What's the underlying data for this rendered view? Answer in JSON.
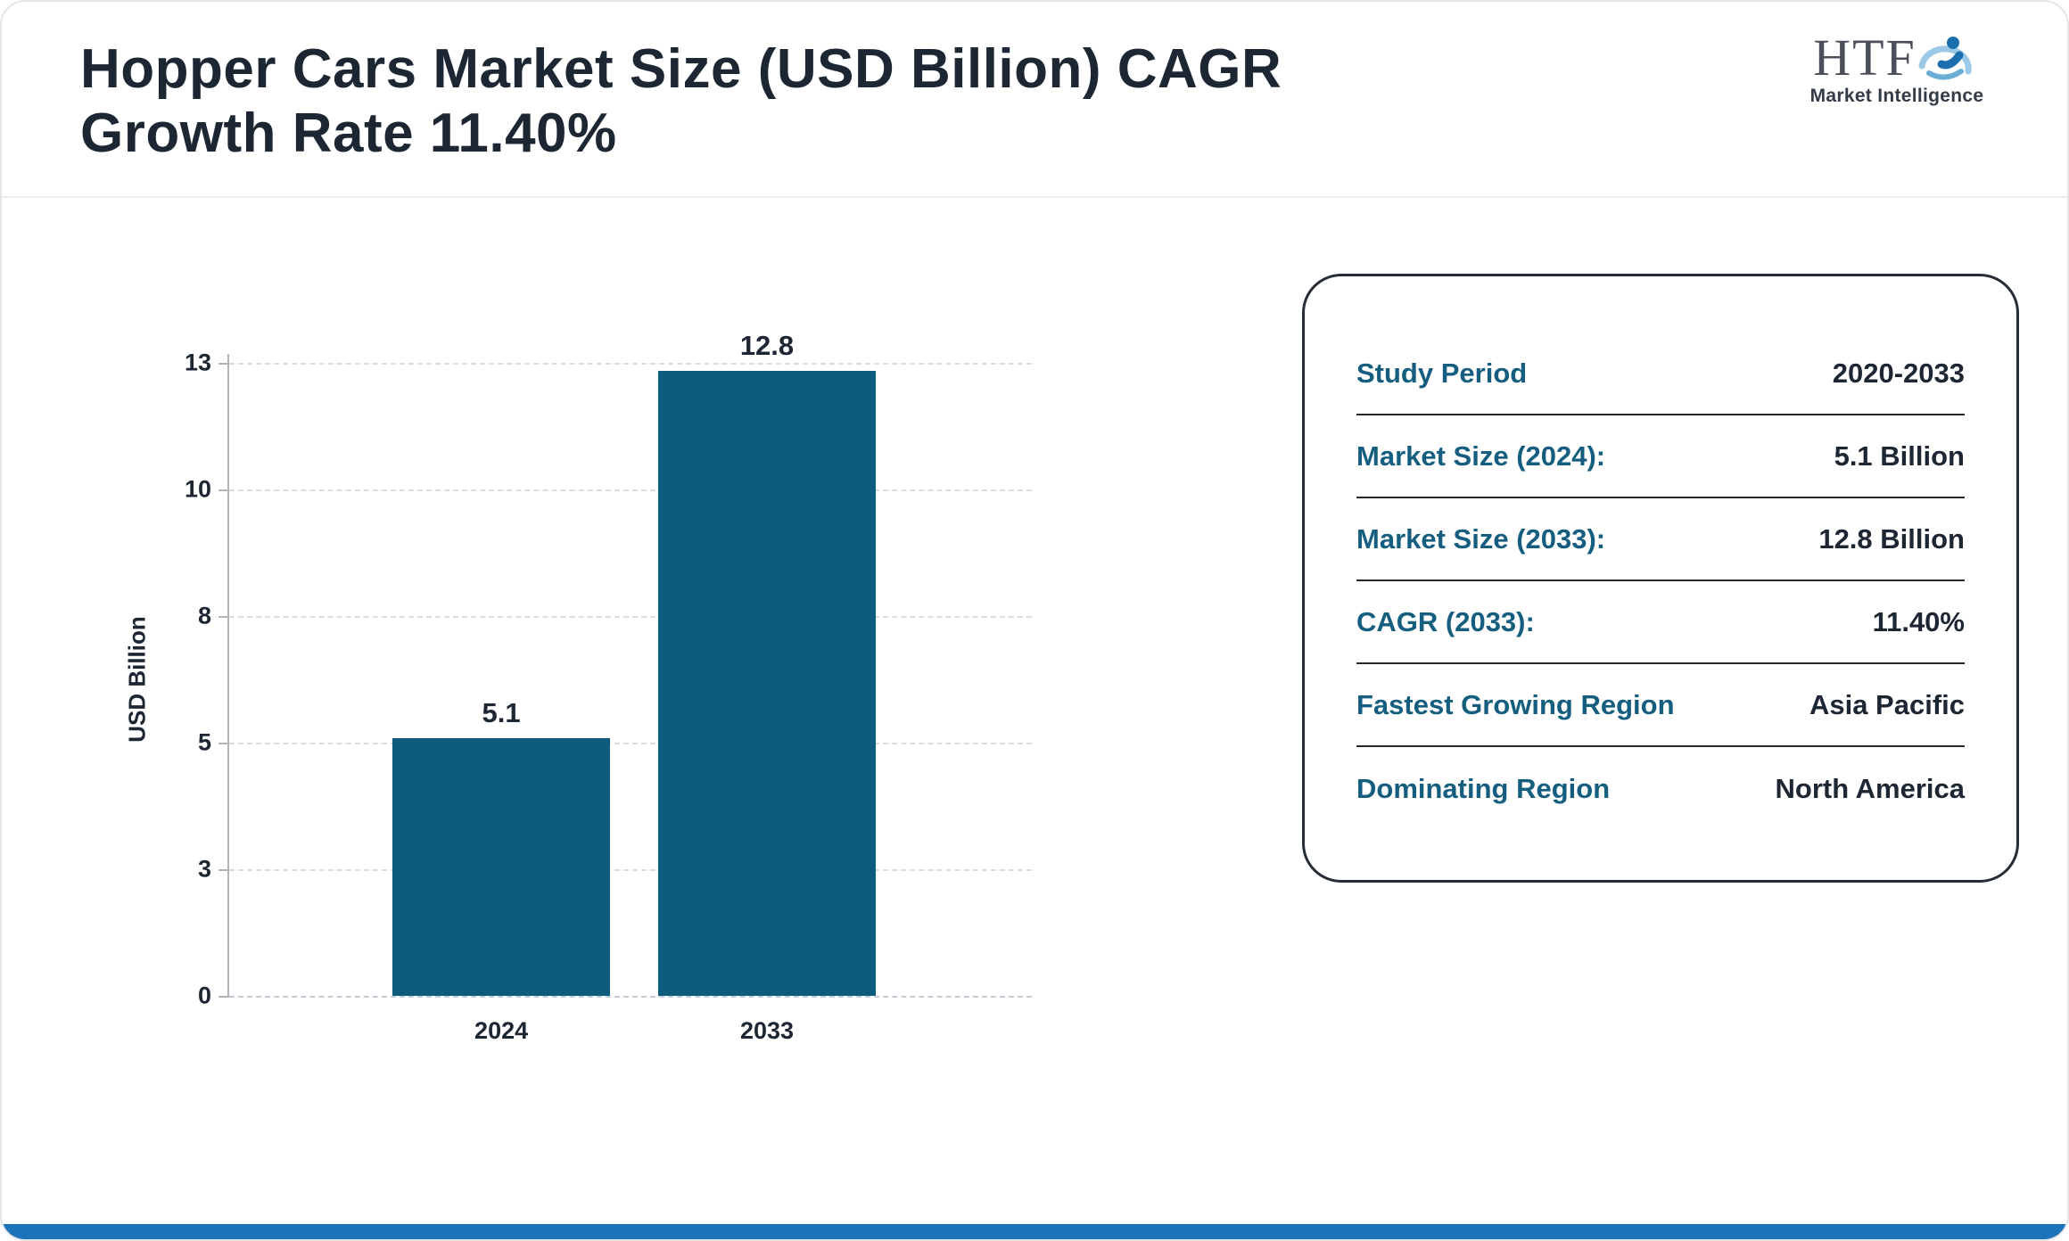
{
  "header": {
    "title_line1": "Hopper Cars Market Size (USD Billion) CAGR",
    "title_line2": "Growth Rate 11.40%",
    "logo": {
      "text": "HTF",
      "subtext": "Market Intelligence"
    }
  },
  "chart_data": {
    "type": "bar",
    "title": "Hopper Cars Market Size (USD Billion) CAGR Growth Rate 11.40%",
    "categories": [
      "2024",
      "2033"
    ],
    "values": [
      5.1,
      12.8
    ],
    "xlabel": "",
    "ylabel": "USD Billion",
    "yticks": [
      0,
      3,
      5,
      8,
      10,
      13
    ],
    "ylim": [
      0,
      13
    ],
    "grid": "horizontal-dashed",
    "legend": "none",
    "bar_color": "#0d5c7e"
  },
  "panel": {
    "rows": [
      {
        "label": "Study Period",
        "value": "2020-2033"
      },
      {
        "label": "Market Size (2024):",
        "value": "5.1 Billion"
      },
      {
        "label": "Market Size (2033):",
        "value": "12.8 Billion"
      },
      {
        "label": "CAGR (2033):",
        "value": "11.40%"
      },
      {
        "label": "Fastest Growing Region",
        "value": "Asia Pacific"
      },
      {
        "label": "Dominating Region",
        "value": "North America"
      }
    ]
  },
  "colors": {
    "bar": "#0d5c7e",
    "panel_label": "#155e80",
    "text_dark": "#1d2633",
    "bottom_bar": "#1b73ba"
  }
}
